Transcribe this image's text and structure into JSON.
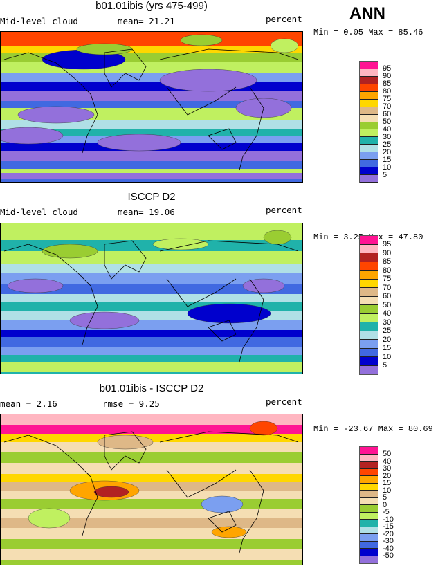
{
  "figure_title": "ANN",
  "palette": [
    "#ff1493",
    "#ffb6c1",
    "#b22222",
    "#ff4500",
    "#ffa500",
    "#ffd700",
    "#deb887",
    "#f5deb3",
    "#9acd32",
    "#c0f060",
    "#20b2aa",
    "#b0e0e6",
    "#7b9ff0",
    "#4169e1",
    "#0000cd",
    "#9370db"
  ],
  "panels": [
    {
      "title": "b01.01ibis (yrs 475-499)",
      "left_label": "Mid-level cloud",
      "center_label": "mean=  21.21",
      "right_label": "percent",
      "minmax": "Min =   0.05 Max =  85.46",
      "levels": [
        "95",
        "90",
        "85",
        "80",
        "75",
        "70",
        "60",
        "50",
        "40",
        "30",
        "25",
        "20",
        "15",
        "10",
        "5"
      ]
    },
    {
      "title": "ISCCP D2",
      "left_label": "Mid-level cloud",
      "center_label": "mean=  19.06",
      "right_label": "percent",
      "minmax": "Min =   3.25 Max =  47.80",
      "levels": [
        "95",
        "90",
        "85",
        "80",
        "75",
        "70",
        "60",
        "50",
        "40",
        "30",
        "25",
        "20",
        "15",
        "10",
        "5"
      ]
    },
    {
      "title": "b01.01ibis - ISCCP D2",
      "left_label": "mean =   2.16",
      "center_label": "rmse =   9.25",
      "right_label": "percent",
      "minmax": "Min = -23.67 Max =  80.69",
      "levels": [
        "50",
        "40",
        "30",
        "20",
        "15",
        "10",
        "5",
        "0",
        "-5",
        "-10",
        "-15",
        "-20",
        "-30",
        "-40",
        "-50"
      ]
    }
  ]
}
